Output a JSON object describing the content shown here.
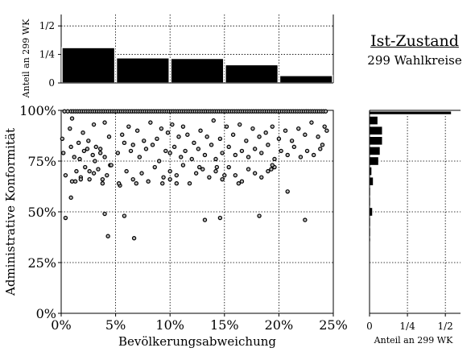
{
  "title": {
    "main": "Ist-Zustand",
    "sub": "299 Wahlkreise"
  },
  "chart_data": [
    {
      "type": "scatter",
      "xlabel": "Bevölkerungsabweichung",
      "ylabel": "Administrative Konformität",
      "xlim": [
        0,
        25
      ],
      "ylim": [
        0,
        100
      ],
      "x_ticks": [
        "0%",
        "5%",
        "10%",
        "15%",
        "20%",
        "25%"
      ],
      "y_ticks": [
        "0%",
        "25%",
        "50%",
        "75%",
        "100%"
      ],
      "grid": true,
      "x": [
        0.3,
        0.6,
        0.9,
        1.1,
        1.3,
        1.5,
        1.7,
        1.9,
        2.1,
        2.3,
        2.5,
        2.7,
        2.9,
        3.1,
        3.3,
        3.5,
        3.7,
        3.9,
        4.1,
        4.3,
        4.5,
        4.7,
        4.9,
        5.1,
        5.3,
        5.5,
        5.7,
        5.9,
        6.1,
        6.3,
        6.5,
        6.7,
        6.9,
        7.1,
        7.3,
        7.5,
        7.7,
        7.9,
        8.1,
        8.3,
        8.5,
        8.7,
        8.9,
        9.1,
        9.3,
        9.5,
        9.7,
        9.9,
        10.1,
        10.3,
        10.5,
        10.7,
        10.9,
        11.1,
        11.3,
        11.5,
        11.7,
        11.9,
        12.1,
        12.3,
        12.5,
        12.7,
        12.9,
        13.1,
        13.3,
        13.5,
        13.7,
        13.9,
        14.1,
        14.3,
        14.5,
        14.7,
        14.9,
        15.1,
        15.3,
        15.5,
        15.7,
        15.9,
        16.1,
        16.3,
        16.5,
        16.7,
        16.9,
        17.1,
        17.3,
        17.5,
        17.7,
        17.9,
        18.1,
        18.3,
        18.5,
        18.7,
        18.9,
        19.1,
        19.3,
        19.5,
        19.7,
        19.9,
        20.1,
        20.3,
        20.5,
        20.7,
        20.9,
        21.1,
        21.3,
        21.5,
        21.7,
        21.9,
        22.1,
        22.3,
        22.5,
        22.7,
        22.9,
        23.1,
        23.3,
        23.5,
        23.7,
        23.9,
        24.1,
        24.3,
        0.1,
        0.8,
        1.0,
        1.6,
        2.0,
        2.4,
        3.0,
        3.6,
        4.0,
        4.4,
        5.6,
        6.2,
        6.6,
        7.0,
        7.6,
        8.2,
        8.8,
        9.2,
        9.8,
        10.2,
        10.8,
        11.2,
        11.6,
        12.2,
        12.8,
        13.4,
        14.0,
        14.6,
        15.2,
        15.8,
        16.4,
        17.0,
        17.6,
        18.2,
        18.8,
        19.4,
        20.0,
        20.6,
        21.2,
        21.8,
        22.4,
        23.0,
        23.6,
        24.2,
        24.4,
        0.2,
        0.9,
        1.2,
        1.7,
        2.1,
        2.5,
        2.9,
        3.2,
        3.6,
        4.0,
        4.5,
        5.2,
        5.8,
        6.4,
        7.2,
        7.8,
        8.4,
        9.0,
        9.6,
        10.0,
        10.4,
        11.0,
        11.4,
        12.0,
        12.6,
        13.2,
        13.8,
        14.2,
        14.8,
        15.4,
        16.0,
        16.6,
        17.2,
        17.8,
        18.4,
        19.0,
        19.6,
        20.2,
        20.8,
        21.4,
        22.0,
        22.6,
        23.2,
        23.8,
        24.0,
        0.4,
        1.0,
        1.4,
        1.8,
        2.2,
        2.6,
        3.0,
        3.4,
        3.8,
        4.2,
        4.6,
        5.4,
        6.0,
        6.6,
        7.4,
        8.0,
        8.6,
        9.4,
        10.0,
        10.6,
        11.2,
        11.8,
        12.4,
        13.0,
        13.6,
        14.2,
        14.8,
        15.4,
        16.0,
        16.6,
        17.2,
        17.8,
        18.4,
        19.0,
        19.6,
        0.4,
        0.9,
        1.3,
        1.8,
        2.6,
        3.1,
        3.8,
        4.0,
        4.3,
        5.3,
        5.8,
        6.7,
        6.9,
        9.3,
        10.0,
        10.6,
        12.7,
        13.2,
        14.3,
        14.6,
        15.0,
        16.3,
        18.2,
        19.3,
        19.4,
        20.8,
        22.4
      ],
      "y": [
        99.5,
        99.5,
        99.5,
        99.5,
        99.5,
        99.5,
        99.5,
        99.5,
        99.5,
        99.5,
        99.5,
        99.5,
        99.5,
        99.5,
        99.5,
        99.5,
        99.5,
        99.5,
        99.5,
        99.5,
        99.5,
        99.5,
        99.5,
        99.5,
        99.5,
        99.5,
        99.5,
        99.5,
        99.5,
        99.5,
        99.5,
        99.5,
        99.5,
        99.5,
        99.5,
        99.5,
        99.5,
        99.5,
        99.5,
        99.5,
        99.5,
        99.5,
        99.5,
        99.5,
        99.5,
        99.5,
        99.5,
        99.5,
        99.5,
        99.5,
        99.5,
        99.5,
        99.5,
        99.5,
        99.5,
        99.5,
        99.5,
        99.5,
        99.5,
        99.5,
        99.5,
        99.5,
        99.5,
        99.5,
        99.5,
        99.5,
        99.5,
        99.5,
        99.5,
        99.5,
        99.5,
        99.5,
        99.5,
        99.5,
        99.5,
        99.5,
        99.5,
        99.5,
        99.5,
        99.5,
        99.5,
        99.5,
        99.5,
        99.5,
        99.5,
        99.5,
        99.5,
        99.5,
        99.5,
        99.5,
        99.5,
        99.5,
        99.5,
        99.5,
        99.5,
        99.5,
        99.5,
        99.5,
        99.5,
        99.5,
        99.5,
        99.5,
        99.5,
        99.5,
        99.5,
        99.5,
        99.5,
        99.5,
        99.5,
        99.5,
        99.5,
        99.5,
        99.5,
        99.5,
        99.5,
        99.5,
        99.5,
        99.5,
        99.5,
        99.5,
        86,
        91,
        96,
        84,
        89,
        81,
        93,
        79,
        94,
        87,
        88,
        92,
        83,
        90,
        85,
        94,
        86,
        91,
        89,
        93,
        87,
        92,
        88,
        84,
        90,
        87,
        95,
        86,
        92,
        88,
        93,
        85,
        91,
        87,
        89,
        92,
        86,
        90,
        85,
        91,
        88,
        94,
        87,
        92,
        90,
        79,
        82,
        77,
        76,
        80,
        85,
        78,
        82,
        81,
        77,
        73,
        79,
        84,
        80,
        77,
        81,
        83,
        75,
        80,
        79,
        82,
        77,
        80,
        76,
        81,
        78,
        83,
        76,
        79,
        82,
        78,
        80,
        77,
        81,
        79,
        83,
        76,
        80,
        78,
        82,
        77,
        80,
        78,
        81,
        83,
        68,
        65,
        70,
        67,
        72,
        66,
        69,
        71,
        64,
        68,
        73,
        63,
        70,
        66,
        69,
        65,
        72,
        67,
        70,
        68,
        73,
        64,
        69,
        71,
        67,
        70,
        66,
        72,
        68,
        65,
        71,
        69,
        67,
        70,
        72,
        47,
        57,
        65,
        66,
        70,
        75,
        66,
        49,
        38,
        64,
        48,
        37,
        64,
        64,
        66,
        64,
        72,
        46,
        72,
        47,
        68,
        64,
        48,
        71,
        73,
        60,
        46
      ]
    },
    {
      "type": "bar",
      "orientation": "vertical",
      "ylabel": "Anteil an 299 WK",
      "x_ticks": [],
      "y_ticks": [
        "0",
        "1/4",
        "1/2"
      ],
      "ylim": [
        0,
        0.6
      ],
      "bins": [
        [
          0,
          5
        ],
        [
          5,
          10
        ],
        [
          10,
          15
        ],
        [
          15,
          20
        ],
        [
          20,
          25
        ]
      ],
      "values": [
        0.31,
        0.22,
        0.215,
        0.16,
        0.065
      ],
      "grid": true
    },
    {
      "type": "bar",
      "orientation": "horizontal",
      "xlabel": "Anteil an 299 WK",
      "x_ticks": [
        "0",
        "1/4",
        "1/2"
      ],
      "xlim": [
        0,
        0.6
      ],
      "bins": [
        [
          97.5,
          100
        ],
        [
          92.5,
          97.5
        ],
        [
          87.5,
          92.5
        ],
        [
          82.5,
          87.5
        ],
        [
          77.5,
          82.5
        ],
        [
          72.5,
          77.5
        ],
        [
          67.5,
          72.5
        ],
        [
          62.5,
          67.5
        ],
        [
          57.5,
          62.5
        ],
        [
          52.5,
          57.5
        ],
        [
          47.5,
          52.5
        ],
        [
          42.5,
          47.5
        ],
        [
          37.5,
          42.5
        ],
        [
          35,
          37.5
        ]
      ],
      "values": [
        0.54,
        0.055,
        0.085,
        0.085,
        0.07,
        0.06,
        0.015,
        0.025,
        0.004,
        0.004,
        0.02,
        0.004,
        0.004,
        0.004
      ],
      "grid": true
    }
  ]
}
